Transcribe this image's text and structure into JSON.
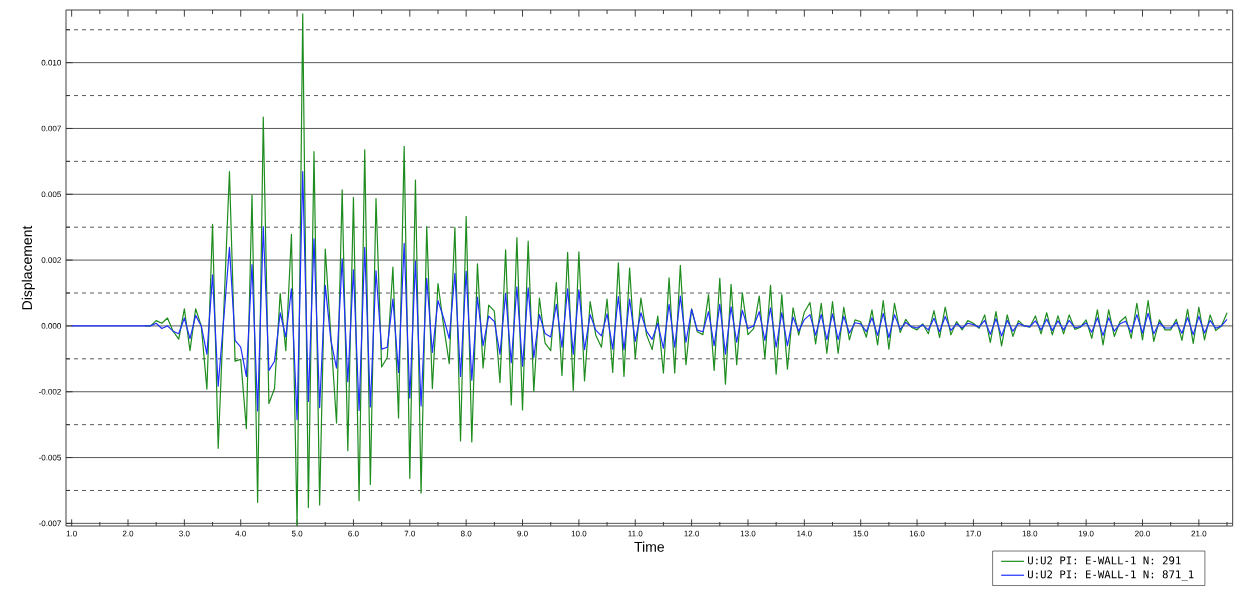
{
  "chart_data": {
    "type": "line",
    "xlabel": "Time",
    "ylabel": "Displacement",
    "xlim": [
      0.9,
      21.6
    ],
    "ylim": [
      -0.0076,
      0.012
    ],
    "xticks": [
      {
        "value": 1,
        "label": "1.0"
      },
      {
        "value": 1.5,
        "label": null
      },
      {
        "value": 2,
        "label": "2.0"
      },
      {
        "value": 2.5,
        "label": null
      },
      {
        "value": 3,
        "label": "3.0"
      },
      {
        "value": 3.5,
        "label": null
      },
      {
        "value": 4,
        "label": "4.0"
      },
      {
        "value": 4.5,
        "label": null
      },
      {
        "value": 5,
        "label": "5.0"
      },
      {
        "value": 5.5,
        "label": null
      },
      {
        "value": 6,
        "label": "6.0"
      },
      {
        "value": 6.5,
        "label": null
      },
      {
        "value": 7,
        "label": "7.0"
      },
      {
        "value": 7.5,
        "label": null
      },
      {
        "value": 8,
        "label": "8.0"
      },
      {
        "value": 8.5,
        "label": null
      },
      {
        "value": 9,
        "label": "9.0"
      },
      {
        "value": 9.5,
        "label": null
      },
      {
        "value": 10,
        "label": "10.0"
      },
      {
        "value": 10.5,
        "label": null
      },
      {
        "value": 11,
        "label": "11.0"
      },
      {
        "value": 11.5,
        "label": null
      },
      {
        "value": 12,
        "label": "12.0"
      },
      {
        "value": 12.5,
        "label": null
      },
      {
        "value": 13,
        "label": "13.0"
      },
      {
        "value": 13.5,
        "label": null
      },
      {
        "value": 14,
        "label": "14.0"
      },
      {
        "value": 14.5,
        "label": null
      },
      {
        "value": 15,
        "label": "15.0"
      },
      {
        "value": 15.5,
        "label": null
      },
      {
        "value": 16,
        "label": "16.0"
      },
      {
        "value": 16.5,
        "label": null
      },
      {
        "value": 17,
        "label": "17.0"
      },
      {
        "value": 17.5,
        "label": null
      },
      {
        "value": 18,
        "label": "18.0"
      },
      {
        "value": 18.5,
        "label": null
      },
      {
        "value": 19,
        "label": "19.0"
      },
      {
        "value": 19.5,
        "label": null
      },
      {
        "value": 20,
        "label": "20.0"
      },
      {
        "value": 20.5,
        "label": null
      },
      {
        "value": 21,
        "label": "21.0"
      },
      {
        "value": 21.5,
        "label": null
      }
    ],
    "yticks": [
      {
        "value": -0.0075,
        "label": "-0.007"
      },
      {
        "value": -0.00625,
        "label": null
      },
      {
        "value": -0.005,
        "label": "-0.005"
      },
      {
        "value": -0.00375,
        "label": null
      },
      {
        "value": -0.0025,
        "label": "-0.002"
      },
      {
        "value": -0.00125,
        "label": null
      },
      {
        "value": 0,
        "label": "0.000"
      },
      {
        "value": 0.00125,
        "label": null
      },
      {
        "value": 0.0025,
        "label": "0.002"
      },
      {
        "value": 0.00375,
        "label": null
      },
      {
        "value": 0.005,
        "label": "0.005"
      },
      {
        "value": 0.00625,
        "label": null
      },
      {
        "value": 0.0075,
        "label": "0.007"
      },
      {
        "value": 0.00875,
        "label": null
      },
      {
        "value": 0.01,
        "label": "0.010"
      },
      {
        "value": 0.01125,
        "label": null
      }
    ],
    "grid": "y",
    "legend": "bottom right",
    "marker": "none",
    "line_style": "solid",
    "x": [
      1.0,
      1.1,
      1.2,
      1.3,
      1.4,
      1.5,
      1.6,
      1.7,
      1.8,
      1.9,
      2.0,
      2.1,
      2.2,
      2.3,
      2.4,
      2.5,
      2.6,
      2.7,
      2.8,
      2.9,
      3.0,
      3.1,
      3.2,
      3.3,
      3.4,
      3.5,
      3.6,
      3.7,
      3.8,
      3.9,
      4.0,
      4.1,
      4.2,
      4.3,
      4.4,
      4.5,
      4.6,
      4.7,
      4.8,
      4.9,
      5.0,
      5.1,
      5.2,
      5.3,
      5.4,
      5.5,
      5.6,
      5.7,
      5.8,
      5.9,
      6.0,
      6.1,
      6.2,
      6.3,
      6.4,
      6.5,
      6.6,
      6.7,
      6.8,
      6.9,
      7.0,
      7.1,
      7.2,
      7.3,
      7.4,
      7.5,
      7.6,
      7.7,
      7.8,
      7.9,
      8.0,
      8.1,
      8.2,
      8.3,
      8.4,
      8.5,
      8.6,
      8.7,
      8.8,
      8.9,
      9.0,
      9.1,
      9.2,
      9.3,
      9.4,
      9.5,
      9.6,
      9.7,
      9.8,
      9.9,
      10.0,
      10.1,
      10.2,
      10.3,
      10.4,
      10.5,
      10.6,
      10.7,
      10.8,
      10.9,
      11.0,
      11.1,
      11.2,
      11.3,
      11.4,
      11.5,
      11.6,
      11.7,
      11.8,
      11.9,
      12.0,
      12.1,
      12.2,
      12.3,
      12.4,
      12.5,
      12.6,
      12.7,
      12.8,
      12.9,
      13.0,
      13.1,
      13.2,
      13.3,
      13.4,
      13.5,
      13.6,
      13.7,
      13.8,
      13.9,
      14.0,
      14.1,
      14.2,
      14.3,
      14.4,
      14.5,
      14.6,
      14.7,
      14.8,
      14.9,
      15.0,
      15.1,
      15.2,
      15.3,
      15.4,
      15.5,
      15.6,
      15.7,
      15.8,
      15.9,
      16.0,
      16.1,
      16.2,
      16.3,
      16.4,
      16.5,
      16.6,
      16.7,
      16.8,
      16.9,
      17.0,
      17.1,
      17.2,
      17.3,
      17.4,
      17.5,
      17.6,
      17.7,
      17.8,
      17.9,
      18.0,
      18.1,
      18.2,
      18.3,
      18.4,
      18.5,
      18.6,
      18.7,
      18.8,
      18.9,
      19.0,
      19.1,
      19.2,
      19.3,
      19.4,
      19.5,
      19.6,
      19.7,
      19.8,
      19.9,
      20.0,
      20.1,
      20.2,
      20.3,
      20.4,
      20.5,
      20.6,
      20.7,
      20.8,
      20.9,
      21.0,
      21.1,
      21.2,
      21.3,
      21.4,
      21.5
    ],
    "series": [
      {
        "name": "U:U2 PI: E-WALL-1 N: 291",
        "color": "#1e8c1e",
        "values": [
          null,
          null,
          null,
          null,
          null,
          null,
          null,
          null,
          null,
          null,
          null,
          null,
          null,
          0,
          0,
          0.0002,
          0.0001,
          0.0003,
          -0.0002,
          -0.0005,
          0.00065,
          -0.00094,
          0.00065,
          0,
          -0.0024,
          0.00386,
          -0.00465,
          0.0006,
          0.00586,
          -0.00134,
          -0.00127,
          -0.0039,
          0.00497,
          -0.0067,
          0.00793,
          -0.00295,
          -0.00238,
          0.00124,
          -0.00094,
          0.00348,
          -0.0076,
          0.01185,
          -0.0069,
          0.00662,
          -0.0068,
          0.00292,
          -0.0004,
          -0.00369,
          0.00517,
          -0.00474,
          0.00488,
          -0.00664,
          0.00669,
          -0.00602,
          0.00484,
          -0.00156,
          -0.0012,
          0.00223,
          -0.0035,
          0.00682,
          -0.00579,
          0.00554,
          -0.00635,
          0.00377,
          -0.00238,
          0.00161,
          0,
          -0.00143,
          0.00374,
          -0.00437,
          0.00416,
          -0.00441,
          0.00236,
          -0.0016,
          0.00079,
          0.00056,
          -0.00215,
          0.00289,
          -0.003,
          0.00335,
          -0.00319,
          0.00322,
          -0.00249,
          0.00106,
          -0.00065,
          -0.00094,
          0.00165,
          -0.00188,
          0.00279,
          -0.00245,
          0.00281,
          -0.00209,
          0.00092,
          -0.00035,
          -0.00081,
          0.00102,
          -0.00177,
          0.0024,
          -0.00192,
          0.0022,
          -0.00124,
          0.00106,
          -0.00033,
          -0.0009,
          0.00037,
          -0.00179,
          0.00183,
          -0.00179,
          0.0023,
          -0.00147,
          0.00065,
          -0.00022,
          -0.00033,
          0.00119,
          -0.00169,
          0.00181,
          -0.00221,
          0.00158,
          -0.00147,
          0.00126,
          -0.00033,
          -0.0001,
          0.00113,
          -0.00124,
          0.00154,
          -0.00183,
          0.00119,
          -0.00164,
          0.00069,
          -0.00035,
          0.00052,
          0.00089,
          -0.00068,
          0.00086,
          -0.00104,
          0.00092,
          -0.00104,
          0.00071,
          -0.00053,
          0.00023,
          0.00016,
          -0.00043,
          0.00061,
          -0.00072,
          0.00096,
          -0.00088,
          0.00086,
          -0.00025,
          0.00025,
          -5e-05,
          -0.00015,
          8e-05,
          -0.0003,
          0.00058,
          -0.00044,
          0.00071,
          -0.00034,
          0.00016,
          -0.00015,
          0.0002,
          0.0001,
          -9e-05,
          0.00042,
          -0.00063,
          0.00054,
          -0.00076,
          0.00042,
          -0.0004,
          0.0002,
          0,
          -5e-05,
          0.00038,
          -0.0003,
          0.0005,
          -0.00034,
          0.00038,
          -0.0003,
          0.00042,
          -0.00013,
          -5e-05,
          0.00023,
          -0.00047,
          0.00061,
          -0.00072,
          0.00061,
          -0.0004,
          0.00016,
          0.00035,
          -0.00047,
          0.00086,
          -0.00053,
          0.00096,
          -0.00059,
          0.00023,
          -0.00015,
          -0.00015,
          0.00025,
          -0.00055,
          0.00063,
          -0.00066,
          0.00071,
          -0.00053,
          0.00042,
          -0.00018,
          0,
          0.0005
        ]
      },
      {
        "name": "U:U2 PI: E-WALL-1 N: 871_1",
        "color": "#1f2fff",
        "values": [
          0,
          0,
          0,
          0,
          0,
          0,
          0,
          0,
          0,
          0,
          0,
          0,
          0,
          0,
          0,
          0.0001,
          -0.0001,
          0,
          -0.0002,
          -0.0003,
          0.0003,
          -0.00048,
          0.0004,
          0,
          -0.00107,
          0.00194,
          -0.00229,
          0.0003,
          0.00298,
          -0.00055,
          -0.00081,
          -0.00192,
          0.00233,
          -0.00323,
          0.00377,
          -0.00169,
          -0.00134,
          0.0005,
          -0.00042,
          0.00141,
          -0.00356,
          0.00586,
          -0.00287,
          0.00331,
          -0.0031,
          0.00154,
          -0.00055,
          -0.0016,
          0.00255,
          -0.00212,
          0.00213,
          -0.00321,
          0.00298,
          -0.00308,
          0.00209,
          -0.00088,
          -0.00081,
          0.00102,
          -0.00177,
          0.00314,
          -0.00274,
          0.00246,
          -0.00304,
          0.00181,
          -0.00101,
          0.00096,
          0.0003,
          -0.00048,
          0.002,
          -0.00192,
          0.00207,
          -0.00206,
          0.00109,
          -0.00075,
          0.00037,
          0.00017,
          -0.00107,
          0.00124,
          -0.0014,
          0.00148,
          -0.00153,
          0.00145,
          -0.0012,
          0.00043,
          -0.00029,
          -0.00042,
          0.00082,
          -0.00081,
          0.00141,
          -0.00107,
          0.00137,
          -0.0009,
          0.00043,
          -0.00016,
          -0.00038,
          0.00046,
          -0.00088,
          0.00111,
          -0.0009,
          0.00102,
          -0.00059,
          0.0005,
          -0.0002,
          -0.00051,
          0.0001,
          -0.00085,
          0.00082,
          -0.00081,
          0.00113,
          -0.00062,
          0.00063,
          -0.00016,
          -0.00022,
          0.00054,
          -0.00075,
          0.00082,
          -0.00107,
          0.00072,
          -0.00062,
          0.00059,
          -0.0001,
          0,
          0.00054,
          -0.00055,
          0.00069,
          -0.00081,
          0.0005,
          -0.00075,
          0.00033,
          -0.0002,
          0.00024,
          0.00043,
          -0.00035,
          0.00043,
          -0.00052,
          0.00046,
          -0.00052,
          0.00036,
          -0.00027,
          0.00012,
          8e-05,
          -0.00022,
          0.00031,
          -0.00036,
          0.00048,
          -0.00044,
          0.00043,
          -0.00013,
          0.00013,
          -3e-05,
          -8e-05,
          4e-05,
          -0.00015,
          0.00029,
          -0.00022,
          0.00036,
          -0.00017,
          8e-05,
          -8e-05,
          0.0001,
          5e-05,
          -5e-05,
          0.00021,
          -0.00032,
          0.00027,
          -0.00038,
          0.00021,
          -0.0002,
          0.0001,
          0,
          -3e-05,
          0.00019,
          -0.00015,
          0.00025,
          -0.00017,
          0.00019,
          -0.00015,
          0.00021,
          -7e-05,
          -3e-05,
          0.00012,
          -0.00024,
          0.00031,
          -0.00036,
          0.00031,
          -0.0002,
          8e-05,
          0.00018,
          -0.00024,
          0.00043,
          -0.00027,
          0.00048,
          -0.0003,
          0.00012,
          -8e-05,
          -8e-05,
          0.00013,
          -0.00028,
          0.00032,
          -0.00033,
          0.00036,
          -0.00027,
          0.00021,
          -9e-05,
          0,
          0.00025
        ]
      }
    ]
  }
}
